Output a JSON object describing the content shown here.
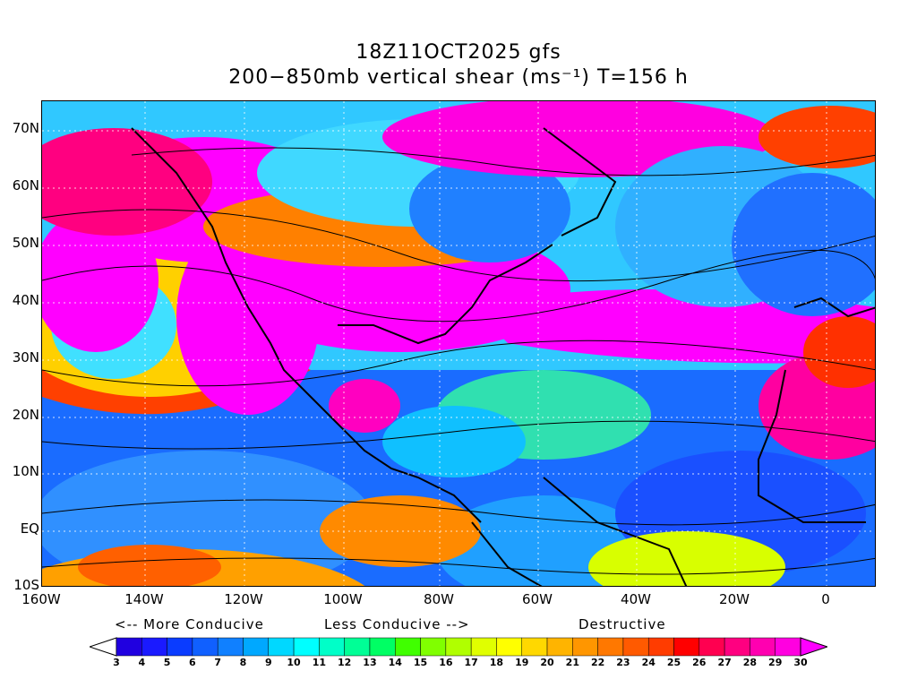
{
  "title": {
    "line1": "18Z11OCT2025 gfs",
    "line2": "200−850mb vertical shear (ms⁻¹) T=156 h"
  },
  "map": {
    "latitude_labels": [
      "70N",
      "60N",
      "50N",
      "40N",
      "30N",
      "20N",
      "10N",
      "EQ",
      "10S"
    ],
    "longitude_labels": [
      "160W",
      "140W",
      "120W",
      "100W",
      "80W",
      "60W",
      "40W",
      "20W",
      "0"
    ],
    "field": "vertical wind shear magnitude",
    "overlay": "streamlines",
    "coastline_color": "#000000"
  },
  "legend": {
    "more_conducive": "<-- More Conducive",
    "less_conducive": "Less Conducive -->",
    "destructive": "Destructive",
    "levels": [
      "3",
      "4",
      "5",
      "6",
      "7",
      "8",
      "9",
      "10",
      "11",
      "12",
      "13",
      "14",
      "15",
      "16",
      "17",
      "18",
      "19",
      "20",
      "21",
      "22",
      "23",
      "24",
      "25",
      "26",
      "27",
      "28",
      "29",
      "30"
    ],
    "colors": [
      "#ffffff",
      "#2000e0",
      "#1a1aff",
      "#0a3cff",
      "#1060ff",
      "#1080ff",
      "#00a8ff",
      "#00d8ff",
      "#00ffff",
      "#00ffc8",
      "#00ff96",
      "#00ff64",
      "#40ff00",
      "#80ff00",
      "#b0ff00",
      "#e0ff00",
      "#ffff00",
      "#ffd800",
      "#ffb400",
      "#ff9600",
      "#ff7800",
      "#ff5a00",
      "#ff3c00",
      "#ff0000",
      "#ff0050",
      "#ff0080",
      "#ff00b0",
      "#ff00e0",
      "#ff00ff"
    ]
  }
}
